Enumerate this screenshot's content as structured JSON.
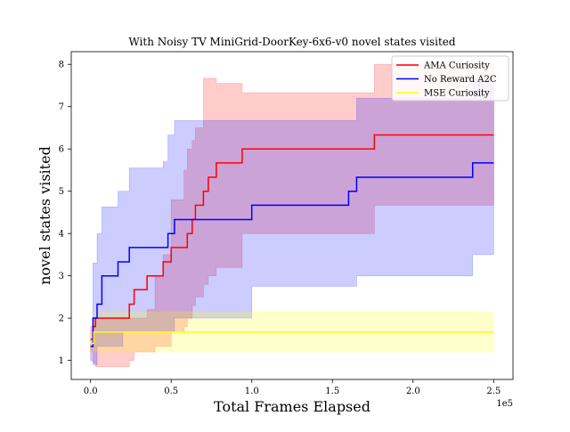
{
  "chart_data": {
    "type": "line",
    "title": "With Noisy TV MiniGrid-DoorKey-6x6-v0 novel states visited",
    "xlabel": "Total Frames Elapsed",
    "ylabel": "novel states visited",
    "x_offset_label": "1e5",
    "xlim": [
      -12000,
      262000
    ],
    "ylim": [
      0.55,
      8.3
    ],
    "x_ticks": [
      0,
      50000,
      100000,
      150000,
      200000,
      250000
    ],
    "x_tick_labels": [
      "0.0",
      "0.5",
      "1.0",
      "1.5",
      "2.0",
      "2.5"
    ],
    "y_ticks": [
      1,
      2,
      3,
      4,
      5,
      6,
      7,
      8
    ],
    "y_tick_labels": [
      "1",
      "2",
      "3",
      "4",
      "5",
      "6",
      "7",
      "8"
    ],
    "legend_position": "top-right",
    "series": [
      {
        "name": "AMA Curiosity",
        "color": "#ff0000",
        "band_color": "#ff0000",
        "x": [
          0,
          1500,
          3000,
          22000,
          24000,
          27000,
          35000,
          40000,
          45000,
          50000,
          58000,
          60000,
          63000,
          65000,
          70000,
          73000,
          78000,
          94000,
          176000,
          250000
        ],
        "mean": [
          1.5,
          1.8,
          2.0,
          2.0,
          2.33,
          2.67,
          3.0,
          3.0,
          3.33,
          3.67,
          3.67,
          4.0,
          4.33,
          4.67,
          5.0,
          5.33,
          5.67,
          6.0,
          6.33,
          6.33
        ],
        "upper": [
          1.8,
          2.0,
          2.0,
          2.0,
          2.0,
          2.0,
          2.2,
          3.0,
          3.5,
          4.8,
          5.5,
          6.0,
          6.2,
          6.5,
          7.67,
          7.67,
          7.55,
          7.33,
          8.0,
          8.0
        ],
        "lower": [
          1.2,
          0.95,
          0.85,
          0.85,
          1.0,
          1.2,
          1.2,
          1.33,
          1.33,
          1.67,
          1.8,
          2.0,
          2.3,
          2.5,
          2.8,
          3.0,
          3.2,
          4.0,
          4.67,
          4.67
        ]
      },
      {
        "name": "No Reward A2C",
        "color": "#0000ff",
        "band_color": "#0000ff",
        "x": [
          0,
          1500,
          4000,
          7000,
          13000,
          17000,
          20000,
          24000,
          35000,
          45000,
          48000,
          52000,
          60000,
          90000,
          100000,
          160000,
          165000,
          237000,
          250000
        ],
        "mean": [
          1.33,
          2.0,
          2.33,
          3.0,
          3.0,
          3.33,
          3.33,
          3.67,
          3.67,
          3.67,
          4.0,
          4.33,
          4.33,
          4.33,
          4.67,
          5.0,
          5.33,
          5.67,
          5.67
        ],
        "upper": [
          1.4,
          3.3,
          4.0,
          4.63,
          4.63,
          5.0,
          5.0,
          5.55,
          5.55,
          5.7,
          6.33,
          6.67,
          6.67,
          6.67,
          6.67,
          6.67,
          7.2,
          7.67,
          7.67
        ],
        "lower": [
          1.0,
          0.9,
          1.33,
          1.33,
          1.33,
          1.33,
          1.67,
          1.67,
          1.67,
          1.67,
          1.67,
          2.0,
          2.0,
          2.0,
          2.75,
          2.75,
          3.0,
          3.5,
          3.75
        ]
      },
      {
        "name": "MSE Curiosity",
        "color": "#ffff00",
        "band_color": "#ffff00",
        "x": [
          0,
          2000,
          250000
        ],
        "mean": [
          1.4,
          1.67,
          1.67
        ],
        "upper": [
          1.5,
          2.15,
          2.15
        ],
        "lower": [
          1.2,
          1.2,
          1.2
        ]
      }
    ]
  }
}
